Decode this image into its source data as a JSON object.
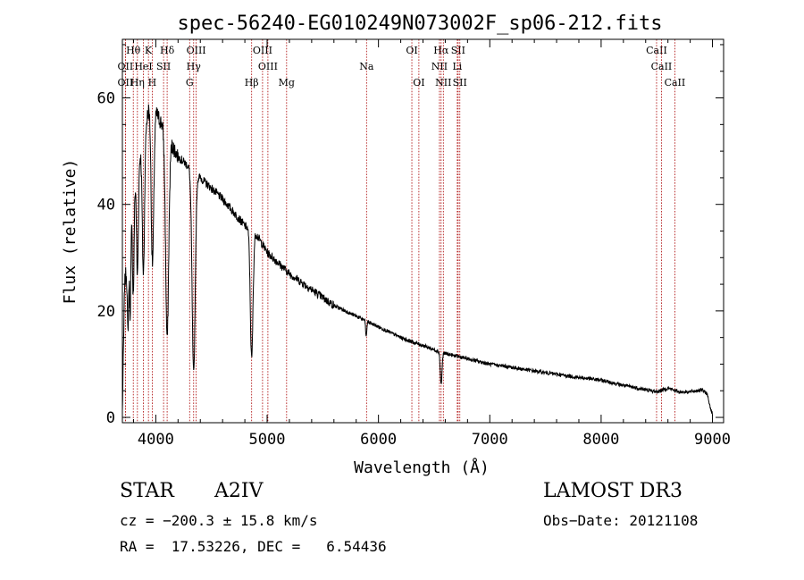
{
  "chart_data": {
    "type": "line",
    "title": "spec-56240-EG010249N073002F_sp06-212.fits",
    "xlabel": "Wavelength (Å)",
    "ylabel": "Flux (relative)",
    "xlim": [
      3700,
      9100
    ],
    "ylim": [
      -1,
      71
    ],
    "xticks": [
      4000,
      5000,
      6000,
      7000,
      8000,
      9000
    ],
    "yticks": [
      0,
      20,
      40,
      60
    ],
    "line_color": "#000000",
    "marker_color": "#aa0000",
    "continuum": {
      "x": [
        3700,
        3720,
        3750,
        3780,
        3820,
        3850,
        3880,
        3920,
        3950,
        3990,
        4030,
        4060,
        4100,
        4150,
        4200,
        4250,
        4300,
        4350,
        4400,
        4450,
        4500,
        4550,
        4600,
        4700,
        4800,
        4860,
        4900,
        5000,
        5100,
        5200,
        5300,
        5400,
        5500,
        5600,
        5700,
        5800,
        5900,
        6000,
        6100,
        6200,
        6300,
        6400,
        6500,
        6600,
        6700,
        6800,
        6900,
        7000,
        7200,
        7400,
        7600,
        7800,
        8000,
        8200,
        8400,
        8500,
        8600,
        8700,
        8800,
        8900,
        8950,
        8980,
        9000
      ],
      "y": [
        1,
        25,
        30,
        38,
        45,
        48,
        52,
        56,
        60,
        58,
        56,
        55,
        53,
        51,
        49,
        48,
        47,
        46,
        45,
        44,
        43,
        42,
        41,
        38.5,
        36,
        35,
        34.5,
        31,
        29,
        27,
        25.5,
        24,
        22.5,
        21,
        20,
        19,
        18,
        17,
        16,
        15,
        14.2,
        13.5,
        12.7,
        12,
        11.5,
        11,
        10.5,
        10,
        9.4,
        8.7,
        8.1,
        7.5,
        7,
        6,
        5.2,
        4.8,
        5.5,
        4.8,
        4.8,
        5.2,
        4.5,
        2,
        0.5
      ]
    },
    "absorption_lines": [
      {
        "center": 3750,
        "depth": 14,
        "width": 6
      },
      {
        "center": 3770,
        "depth": 16,
        "width": 6
      },
      {
        "center": 3798,
        "depth": 18,
        "width": 7
      },
      {
        "center": 3835,
        "depth": 20,
        "width": 8
      },
      {
        "center": 3889,
        "depth": 26,
        "width": 10
      },
      {
        "center": 3970,
        "depth": 30,
        "width": 12
      },
      {
        "center": 4102,
        "depth": 38,
        "width": 14
      },
      {
        "center": 4340,
        "depth": 38,
        "width": 14
      },
      {
        "center": 4861,
        "depth": 24,
        "width": 12
      },
      {
        "center": 5890,
        "depth": 3,
        "width": 5
      },
      {
        "center": 6563,
        "depth": 6,
        "width": 8
      }
    ],
    "spectral_lines": [
      {
        "label": "Hθ",
        "x": 3798,
        "row": 0
      },
      {
        "label": "K",
        "x": 3934,
        "row": 0
      },
      {
        "label": "Hδ",
        "x": 4102,
        "row": 0
      },
      {
        "label": "OIII",
        "x": 4363,
        "row": 0
      },
      {
        "label": "OIII",
        "x": 4959,
        "row": 0
      },
      {
        "label": "OI",
        "x": 6300,
        "row": 0
      },
      {
        "label": "Hα",
        "x": 6563,
        "row": 0
      },
      {
        "label": "SII",
        "x": 6716,
        "row": 0
      },
      {
        "label": "CaII",
        "x": 8498,
        "row": 0
      },
      {
        "label": "OII",
        "x": 3727,
        "row": 1
      },
      {
        "label": "HeI",
        "x": 3889,
        "row": 1
      },
      {
        "label": "SII",
        "x": 4070,
        "row": 1
      },
      {
        "label": "Hγ",
        "x": 4340,
        "row": 1
      },
      {
        "label": "OIII",
        "x": 5007,
        "row": 1
      },
      {
        "label": "Na",
        "x": 5893,
        "row": 1
      },
      {
        "label": "NII",
        "x": 6548,
        "row": 1
      },
      {
        "label": "Li",
        "x": 6708,
        "row": 1
      },
      {
        "label": "CaII",
        "x": 8542,
        "row": 1
      },
      {
        "label": "OII",
        "x": 3727,
        "row": 2
      },
      {
        "label": "Hη",
        "x": 3835,
        "row": 2
      },
      {
        "label": "H",
        "x": 3968,
        "row": 2
      },
      {
        "label": "G",
        "x": 4304,
        "row": 2
      },
      {
        "label": "Hβ",
        "x": 4861,
        "row": 2
      },
      {
        "label": "Mg",
        "x": 5175,
        "row": 2
      },
      {
        "label": "OI",
        "x": 6363,
        "row": 2
      },
      {
        "label": "NII",
        "x": 6583,
        "row": 2
      },
      {
        "label": "SII",
        "x": 6731,
        "row": 2
      },
      {
        "label": "CaII",
        "x": 8662,
        "row": 2
      }
    ]
  },
  "info": {
    "object_class": "STAR",
    "subclass": "A2IV",
    "survey": "LAMOST DR3",
    "cz": "cz = −200.3 ± 15.8 km/s",
    "obs_date": "Obs−Date: 20121108",
    "radec": "RA =  17.53226, DEC =   6.54436"
  }
}
